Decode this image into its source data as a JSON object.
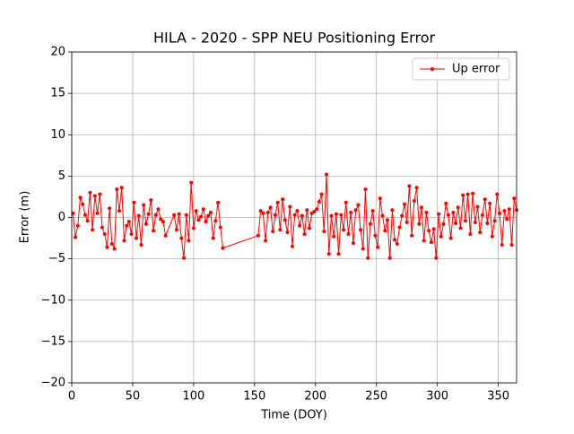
{
  "chart_data": {
    "type": "line",
    "title": "HILA - 2020 - SPP NEU Positioning Error",
    "xlabel": "Time (DOY)",
    "ylabel": "Error (m)",
    "x": [
      1,
      3,
      5,
      7,
      9,
      11,
      13,
      15,
      17,
      19,
      21,
      23,
      25,
      27,
      29,
      31,
      33,
      35,
      37,
      39,
      41,
      43,
      45,
      47,
      49,
      51,
      53,
      55,
      57,
      59,
      61,
      63,
      65,
      67,
      69,
      71,
      73,
      75,
      77,
      84,
      86,
      88,
      90,
      92,
      94,
      96,
      98,
      100,
      102,
      104,
      106,
      108,
      110,
      112,
      114,
      116,
      118,
      120,
      122,
      124,
      153,
      155,
      157,
      159,
      161,
      163,
      165,
      167,
      169,
      171,
      173,
      175,
      177,
      179,
      181,
      183,
      185,
      187,
      189,
      191,
      193,
      195,
      197,
      199,
      201,
      203,
      205,
      207,
      209,
      211,
      213,
      215,
      217,
      219,
      221,
      223,
      225,
      227,
      229,
      231,
      233,
      235,
      237,
      239,
      241,
      243,
      245,
      247,
      249,
      251,
      253,
      255,
      257,
      259,
      261,
      263,
      265,
      267,
      269,
      271,
      273,
      275,
      277,
      279,
      281,
      283,
      285,
      287,
      289,
      291,
      293,
      295,
      297,
      299,
      301,
      303,
      305,
      307,
      309,
      311,
      313,
      315,
      317,
      319,
      321,
      323,
      325,
      327,
      329,
      331,
      333,
      335,
      337,
      339,
      341,
      343,
      345,
      347,
      349,
      351,
      353,
      355,
      357,
      359,
      361,
      363,
      365
    ],
    "series": [
      {
        "name": "Up error",
        "color": "#ff0000",
        "values": [
          0.5,
          -2.4,
          -1.0,
          2.4,
          1.6,
          0.3,
          -0.4,
          3.0,
          -1.5,
          2.6,
          0.5,
          2.8,
          -1.2,
          -2.0,
          -3.6,
          1.1,
          -3.2,
          -3.8,
          3.4,
          0.8,
          3.6,
          -2.8,
          -1.0,
          -0.5,
          -2.0,
          1.8,
          -2.5,
          0.2,
          -3.3,
          1.5,
          -0.8,
          0.4,
          2.1,
          -1.6,
          0.3,
          1.0,
          -0.2,
          -0.5,
          -2.2,
          0.3,
          -1.5,
          0.4,
          -2.5,
          -4.9,
          0.3,
          -2.8,
          4.2,
          -1.3,
          0.8,
          -0.3,
          0.1,
          1.0,
          -0.5,
          0.2,
          0.6,
          -2.5,
          -0.4,
          1.8,
          -1.2,
          -3.7,
          -2.2,
          0.8,
          0.5,
          -2.8,
          0.6,
          1.2,
          -1.7,
          0.3,
          1.8,
          -1.5,
          2.2,
          -0.3,
          -1.8,
          1.3,
          -3.5,
          0.3,
          0.8,
          -1.0,
          0.2,
          -2.0,
          0.9,
          -1.3,
          0.5,
          0.7,
          1.0,
          1.9,
          2.8,
          -1.7,
          5.2,
          -4.4,
          0.2,
          -2.3,
          0.4,
          -4.4,
          0.3,
          -1.5,
          1.8,
          -2.0,
          0.6,
          -3.1,
          0.9,
          1.5,
          -1.5,
          -3.8,
          3.4,
          -4.9,
          -0.8,
          0.8,
          -2.2,
          -3.6,
          2.3,
          0.2,
          -1.6,
          -0.3,
          -4.9,
          0.9,
          -2.7,
          -3.2,
          -1.2,
          0.2,
          1.6,
          -0.6,
          3.8,
          -2.2,
          2.0,
          3.6,
          -0.8,
          1.2,
          -2.8,
          0.6,
          -1.6,
          -3.0,
          -1.4,
          -4.9,
          0.4,
          -2.3,
          -0.8,
          1.7,
          0.3,
          -2.5,
          0.6,
          -0.7,
          1.2,
          -1.3,
          2.7,
          -0.4,
          2.8,
          -2.0,
          2.9,
          -0.6,
          1.3,
          -1.8,
          0.3,
          2.2,
          -0.7,
          1.7,
          -2.3,
          -0.4,
          2.8,
          0.5,
          -3.3,
          0.8,
          -0.2,
          1.0,
          -3.3,
          2.3,
          0.9
        ]
      }
    ],
    "xlim": [
      0,
      365
    ],
    "xticks": [
      0,
      50,
      100,
      150,
      200,
      250,
      300,
      350
    ],
    "ylim": [
      -20,
      20
    ],
    "yticks": [
      {
        "value": -20,
        "label": "−20"
      },
      {
        "value": -15,
        "label": "−15"
      },
      {
        "value": -10,
        "label": "−10"
      },
      {
        "value": -5,
        "label": "−5"
      },
      0,
      5,
      10,
      15,
      20
    ],
    "grid": true,
    "legend": "upper right"
  }
}
